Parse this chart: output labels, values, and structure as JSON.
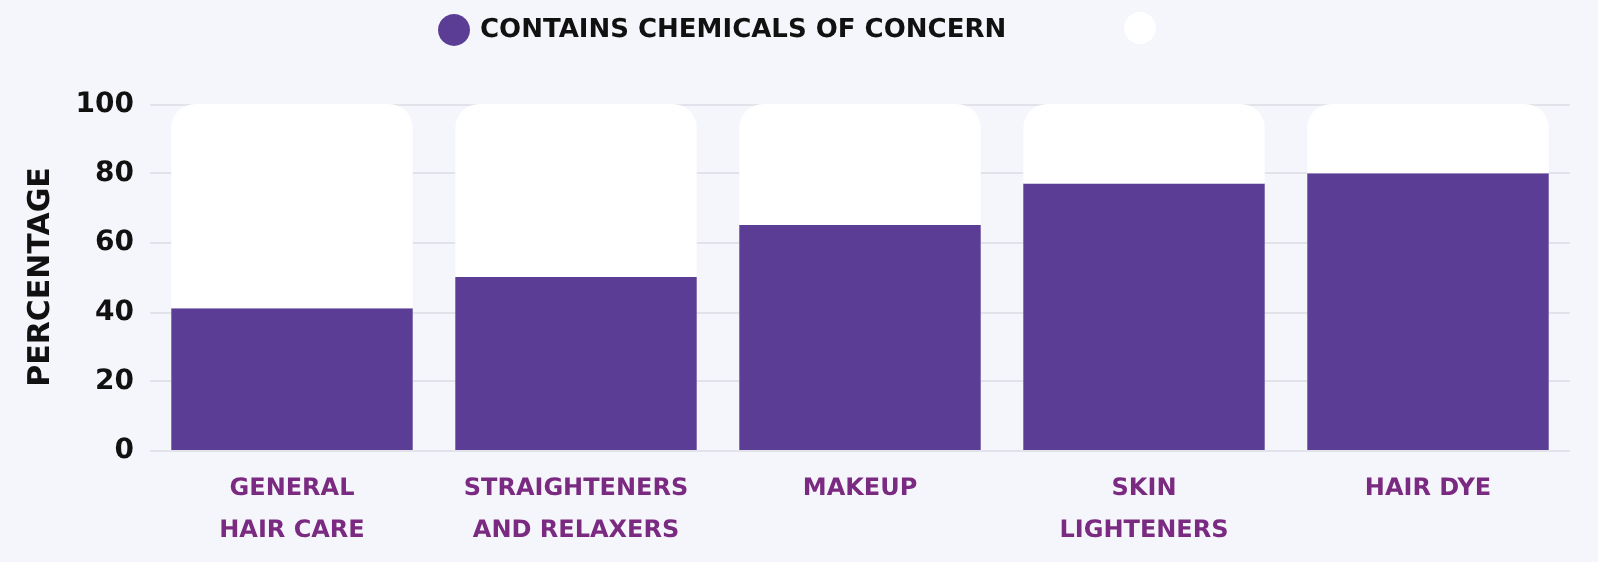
{
  "chart_data": {
    "type": "bar",
    "stacked": true,
    "ylabel": "PERCENTAGE",
    "categories": [
      "GENERAL\nHAIR CARE",
      "STRAIGHTENERS\nAND RELAXERS",
      "MAKEUP",
      "SKIN\nLIGHTENERS",
      "HAIR DYE"
    ],
    "series": [
      {
        "name": "CONTAINS CHEMICALS OF CONCERN",
        "color": "#5b3d96",
        "values": [
          41,
          50,
          65,
          77,
          80
        ]
      },
      {
        "color": "#ffffff",
        "values": [
          59,
          50,
          35,
          23,
          20
        ]
      }
    ],
    "ylim": [
      0,
      100
    ],
    "yticks": [
      0,
      20,
      40,
      60,
      80,
      100
    ],
    "grid": "y",
    "legend": "top"
  }
}
